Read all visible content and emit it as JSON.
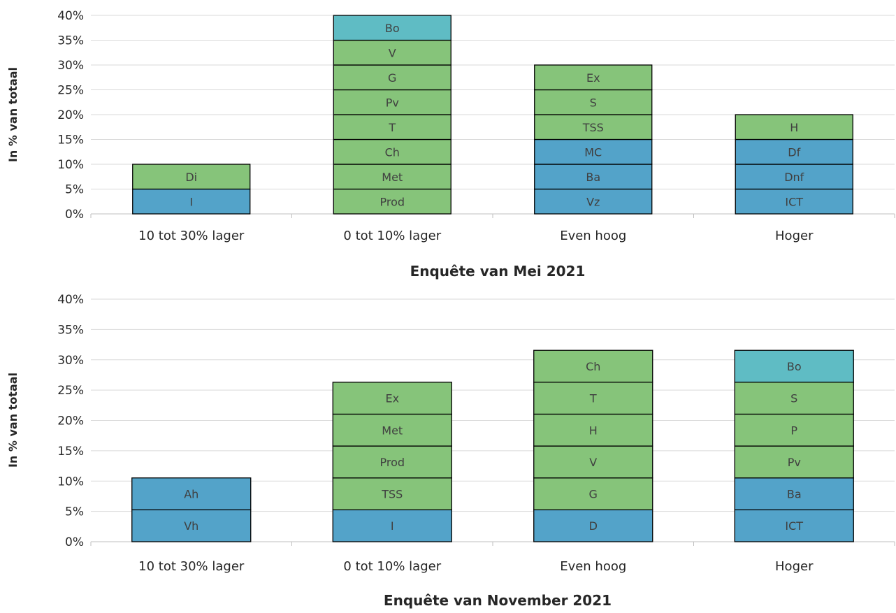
{
  "colors": {
    "blue": "#53a3c9",
    "green": "#86c47a",
    "teal": "#5fbcc4",
    "edge": "#000000"
  },
  "chart_data": [
    {
      "type": "bar",
      "stacked": true,
      "title": "",
      "ylabel": "In % van totaal",
      "ylim": [
        0,
        40
      ],
      "yticks": [
        "0%",
        "5%",
        "10%",
        "15%",
        "20%",
        "25%",
        "30%",
        "35%",
        "40%"
      ],
      "categories": [
        "10 tot 30% lager",
        "0 tot 10% lager",
        "Even hoog",
        "Hoger"
      ],
      "grid": true,
      "stacks": [
        [
          {
            "label": "I",
            "value": 5,
            "color": "blue"
          },
          {
            "label": "Di",
            "value": 5,
            "color": "green"
          }
        ],
        [
          {
            "label": "Prod",
            "value": 5,
            "color": "green"
          },
          {
            "label": "Met",
            "value": 5,
            "color": "green"
          },
          {
            "label": "Ch",
            "value": 5,
            "color": "green"
          },
          {
            "label": "T",
            "value": 5,
            "color": "green"
          },
          {
            "label": "Pv",
            "value": 5,
            "color": "green"
          },
          {
            "label": "G",
            "value": 5,
            "color": "green"
          },
          {
            "label": "V",
            "value": 5,
            "color": "green"
          },
          {
            "label": "Bo",
            "value": 5,
            "color": "teal"
          }
        ],
        [
          {
            "label": "Vz",
            "value": 5,
            "color": "blue"
          },
          {
            "label": "Ba",
            "value": 5,
            "color": "blue"
          },
          {
            "label": "MC",
            "value": 5,
            "color": "blue"
          },
          {
            "label": "TSS",
            "value": 5,
            "color": "green"
          },
          {
            "label": "S",
            "value": 5,
            "color": "green"
          },
          {
            "label": "Ex",
            "value": 5,
            "color": "green"
          }
        ],
        [
          {
            "label": "ICT",
            "value": 5,
            "color": "blue"
          },
          {
            "label": "Dnf",
            "value": 5,
            "color": "blue"
          },
          {
            "label": "Df",
            "value": 5,
            "color": "blue"
          },
          {
            "label": "H",
            "value": 5,
            "color": "green"
          }
        ]
      ]
    },
    {
      "type": "bar",
      "stacked": true,
      "title": "Enquête van Mei 2021",
      "ylabel": "In % van totaal",
      "ylim": [
        0,
        40
      ],
      "yticks": [
        "0%",
        "5%",
        "10%",
        "15%",
        "20%",
        "25%",
        "30%",
        "35%",
        "40%"
      ],
      "categories": [
        "10 tot 30% lager",
        "0 tot 10% lager",
        "Even hoog",
        "Hoger"
      ],
      "grid": true,
      "stacks": [
        [
          {
            "label": "Vh",
            "value": 5.26,
            "color": "blue"
          },
          {
            "label": "Ah",
            "value": 5.26,
            "color": "blue"
          }
        ],
        [
          {
            "label": "I",
            "value": 5.26,
            "color": "blue"
          },
          {
            "label": "TSS",
            "value": 5.26,
            "color": "green"
          },
          {
            "label": "Prod",
            "value": 5.26,
            "color": "green"
          },
          {
            "label": "Met",
            "value": 5.26,
            "color": "green"
          },
          {
            "label": "Ex",
            "value": 5.26,
            "color": "green"
          }
        ],
        [
          {
            "label": "D",
            "value": 5.26,
            "color": "blue"
          },
          {
            "label": "G",
            "value": 5.26,
            "color": "green"
          },
          {
            "label": "V",
            "value": 5.26,
            "color": "green"
          },
          {
            "label": "H",
            "value": 5.26,
            "color": "green"
          },
          {
            "label": "T",
            "value": 5.26,
            "color": "green"
          },
          {
            "label": "Ch",
            "value": 5.26,
            "color": "green"
          }
        ],
        [
          {
            "label": "ICT",
            "value": 5.26,
            "color": "blue"
          },
          {
            "label": "Ba",
            "value": 5.26,
            "color": "blue"
          },
          {
            "label": "Pv",
            "value": 5.26,
            "color": "green"
          },
          {
            "label": "P",
            "value": 5.26,
            "color": "green"
          },
          {
            "label": "S",
            "value": 5.26,
            "color": "green"
          },
          {
            "label": "Bo",
            "value": 5.26,
            "color": "teal"
          }
        ]
      ]
    }
  ],
  "footer_title": "Enquête van November 2021"
}
